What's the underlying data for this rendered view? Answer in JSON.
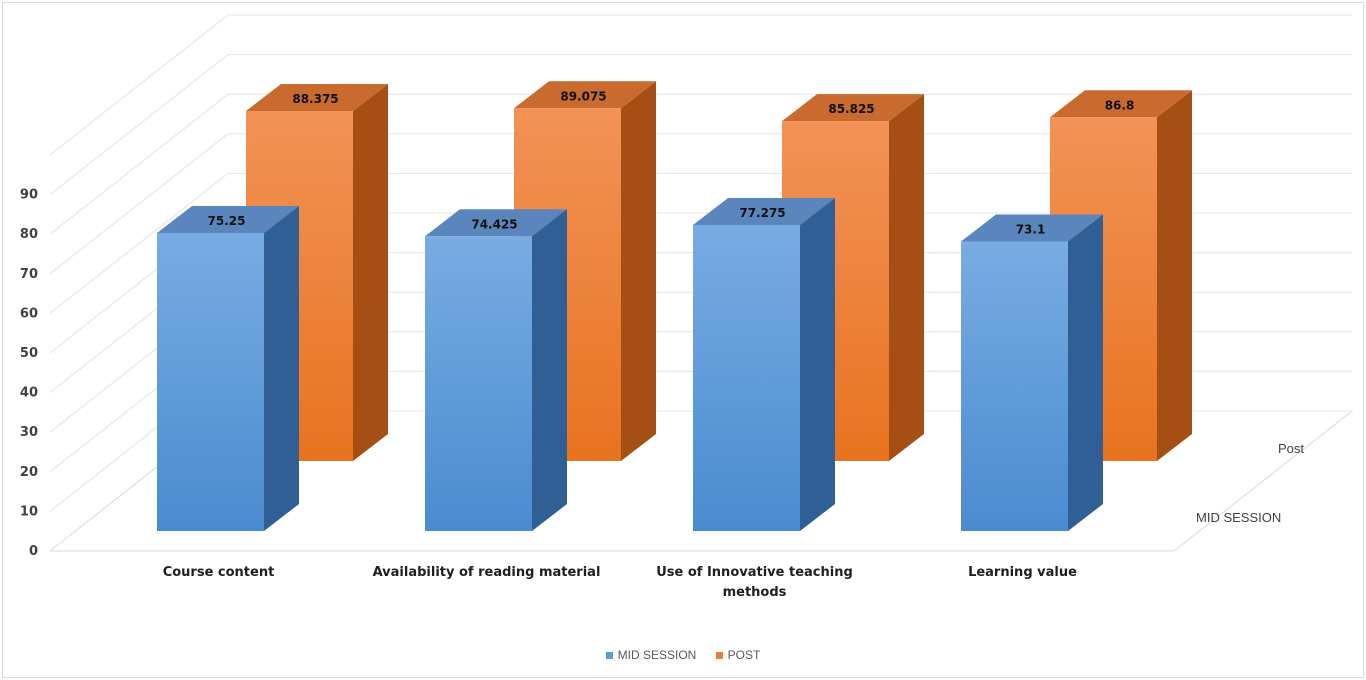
{
  "chart_data": {
    "type": "bar",
    "subtype": "3d-clustered-column",
    "title": "",
    "categories": [
      [
        "Course content"
      ],
      [
        "Availability of reading material"
      ],
      [
        "Use of Innovative teaching",
        "methods"
      ],
      [
        "Learning value"
      ]
    ],
    "series": [
      {
        "name": "MID SESSION",
        "depth_label": "MID SESSION",
        "values": [
          75.25,
          74.425,
          77.275,
          73.1
        ],
        "value_labels": [
          "75.25",
          "74.425",
          "77.275",
          "73.1"
        ],
        "color": "#5b9bd5"
      },
      {
        "name": "POST",
        "depth_label": "Post",
        "values": [
          88.375,
          89.075,
          85.825,
          86.8
        ],
        "value_labels": [
          "88.375",
          "89.075",
          "85.825",
          "86.8"
        ],
        "color": "#ed7d31"
      }
    ],
    "yticks": [
      "0",
      "10",
      "20",
      "30",
      "40",
      "50",
      "60",
      "70",
      "80",
      "90"
    ],
    "ylim": [
      0,
      100
    ],
    "grid": true,
    "legend_position": "bottom"
  }
}
